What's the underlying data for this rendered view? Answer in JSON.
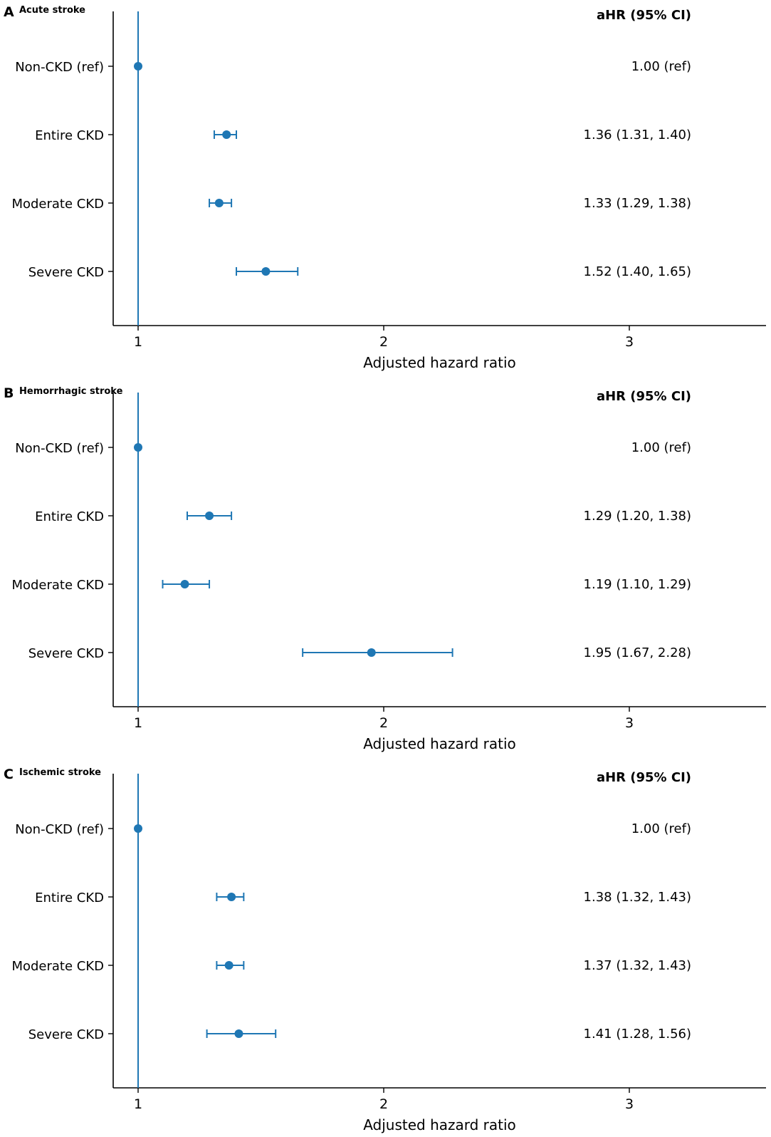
{
  "colors": {
    "series": "#1f77b4",
    "axis": "#000000"
  },
  "chart_data": [
    {
      "type": "scatter",
      "panel_letter": "A",
      "title": "Acute stroke",
      "ci_header": "aHR (95% CI)",
      "xlabel": "Adjusted hazard ratio",
      "xlim": [
        0.9,
        3.55
      ],
      "xticks": [
        1,
        2,
        3
      ],
      "reference_line": 1,
      "rows": [
        {
          "label": "Non-CKD (ref)",
          "hr": 1.0,
          "lo": null,
          "hi": null,
          "text": "1.00 (ref)"
        },
        {
          "label": "Entire CKD",
          "hr": 1.36,
          "lo": 1.31,
          "hi": 1.4,
          "text": "1.36 (1.31, 1.40)"
        },
        {
          "label": "Moderate CKD",
          "hr": 1.33,
          "lo": 1.29,
          "hi": 1.38,
          "text": "1.33 (1.29, 1.38)"
        },
        {
          "label": "Severe CKD",
          "hr": 1.52,
          "lo": 1.4,
          "hi": 1.65,
          "text": "1.52 (1.40, 1.65)"
        }
      ]
    },
    {
      "type": "scatter",
      "panel_letter": "B",
      "title": "Hemorrhagic stroke",
      "ci_header": "aHR (95% CI)",
      "xlabel": "Adjusted hazard ratio",
      "xlim": [
        0.9,
        3.55
      ],
      "xticks": [
        1,
        2,
        3
      ],
      "reference_line": 1,
      "rows": [
        {
          "label": "Non-CKD (ref)",
          "hr": 1.0,
          "lo": null,
          "hi": null,
          "text": "1.00 (ref)"
        },
        {
          "label": "Entire CKD",
          "hr": 1.29,
          "lo": 1.2,
          "hi": 1.38,
          "text": "1.29 (1.20, 1.38)"
        },
        {
          "label": "Moderate CKD",
          "hr": 1.19,
          "lo": 1.1,
          "hi": 1.29,
          "text": "1.19 (1.10, 1.29)"
        },
        {
          "label": "Severe CKD",
          "hr": 1.95,
          "lo": 1.67,
          "hi": 2.28,
          "text": "1.95 (1.67, 2.28)"
        }
      ]
    },
    {
      "type": "scatter",
      "panel_letter": "C",
      "title": "Ischemic stroke",
      "ci_header": "aHR (95% CI)",
      "xlabel": "Adjusted hazard ratio",
      "xlim": [
        0.9,
        3.55
      ],
      "xticks": [
        1,
        2,
        3
      ],
      "reference_line": 1,
      "rows": [
        {
          "label": "Non-CKD (ref)",
          "hr": 1.0,
          "lo": null,
          "hi": null,
          "text": "1.00 (ref)"
        },
        {
          "label": "Entire CKD",
          "hr": 1.38,
          "lo": 1.32,
          "hi": 1.43,
          "text": "1.38 (1.32, 1.43)"
        },
        {
          "label": "Moderate CKD",
          "hr": 1.37,
          "lo": 1.32,
          "hi": 1.43,
          "text": "1.37 (1.32, 1.43)"
        },
        {
          "label": "Severe CKD",
          "hr": 1.41,
          "lo": 1.28,
          "hi": 1.56,
          "text": "1.41 (1.28, 1.56)"
        }
      ]
    }
  ]
}
